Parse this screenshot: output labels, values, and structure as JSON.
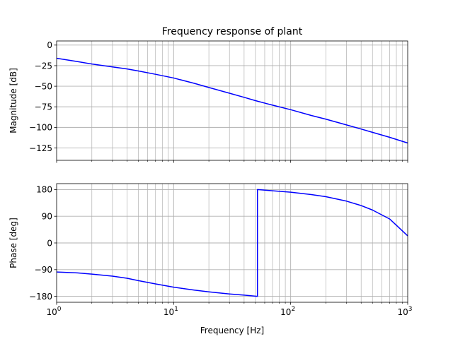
{
  "chart_data": [
    {
      "type": "line",
      "title": "Frequency response of plant",
      "xlabel": "",
      "ylabel": "Magnitude [dB]",
      "xscale": "log",
      "xlim": [
        1,
        1000
      ],
      "ylim": [
        -140,
        5
      ],
      "yticks": [
        0,
        -25,
        -50,
        -75,
        -100,
        -125
      ],
      "ytick_labels": [
        "0",
        "−25",
        "−50",
        "−75",
        "−100",
        "−125"
      ],
      "grid": "major and minor",
      "color": "#0000ff",
      "x": [
        1,
        1.5,
        2,
        3,
        4,
        5,
        7,
        10,
        15,
        20,
        30,
        40,
        50,
        70,
        100,
        150,
        200,
        300,
        400,
        500,
        700,
        1000
      ],
      "y": [
        -16,
        -20,
        -23,
        -26.5,
        -29,
        -31.5,
        -35.5,
        -40,
        -46.5,
        -51.5,
        -58.5,
        -63.5,
        -67.5,
        -73,
        -78.5,
        -85.5,
        -90,
        -97,
        -102,
        -106,
        -112,
        -119
      ]
    },
    {
      "type": "line",
      "title": "",
      "xlabel": "Frequency [Hz]",
      "ylabel": "Phase [deg]",
      "xscale": "log",
      "xlim": [
        1,
        1000
      ],
      "ylim": [
        -200,
        200
      ],
      "yticks": [
        180,
        90,
        0,
        -90,
        -180
      ],
      "ytick_labels": [
        "180",
        "90",
        "0",
        "−90",
        "−180"
      ],
      "xtick_labels": [
        {
          "base": "10",
          "exp": "0"
        },
        {
          "base": "10",
          "exp": "1"
        },
        {
          "base": "10",
          "exp": "2"
        },
        {
          "base": "10",
          "exp": "3"
        }
      ],
      "grid": "major and minor",
      "color": "#0000ff",
      "x": [
        1,
        1.5,
        2,
        3,
        4,
        5,
        7,
        10,
        15,
        20,
        30,
        40,
        52,
        52,
        70,
        100,
        150,
        200,
        300,
        400,
        500,
        700,
        1000
      ],
      "y": [
        -98,
        -101,
        -105,
        -112,
        -119,
        -127,
        -138,
        -149,
        -159,
        -165,
        -172,
        -176,
        -180,
        180,
        176,
        171,
        163,
        156,
        141,
        126,
        111,
        81,
        24
      ]
    }
  ]
}
